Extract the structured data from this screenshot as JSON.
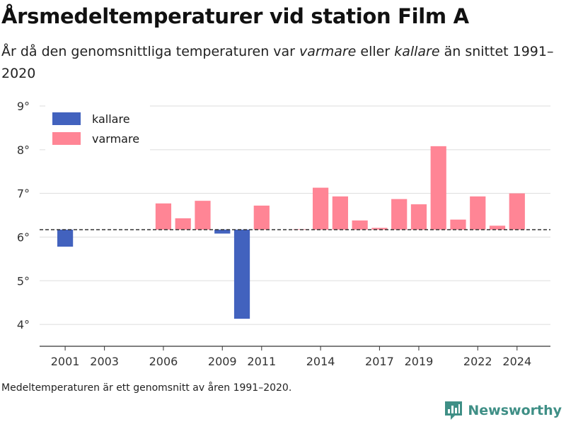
{
  "title": "Årsmedeltemperaturer vid station Film A",
  "subtitle": {
    "prefix": "År då den genomsnittliga temperaturen var ",
    "warmer_word": "varmare",
    "middle": " eller ",
    "colder_word": "kallare",
    "suffix": " än snittet 1991–2020"
  },
  "footnote": "Medeltemperaturen är ett genomsnitt av åren 1991–2020.",
  "brand": {
    "name": "Newsworthy",
    "icon": "newsworthy-logo-icon"
  },
  "colors": {
    "colder": "#4262be",
    "warmer": "#ff8595",
    "baseline": "#333333",
    "grid": "#dddddd"
  },
  "chart_data": {
    "type": "bar",
    "baseline": 6.17,
    "ylim": [
      3.5,
      9.0
    ],
    "yticks": [
      4,
      5,
      6,
      7,
      8,
      9
    ],
    "ytick_labels": [
      "4°",
      "5°",
      "6°",
      "7°",
      "8°",
      "9°"
    ],
    "xlim": [
      1999.7,
      2025.7
    ],
    "xticks": [
      2001,
      2003,
      2006,
      2009,
      2011,
      2014,
      2017,
      2019,
      2022,
      2024
    ],
    "xtick_labels": [
      "2001",
      "2003",
      "2006",
      "2009",
      "2011",
      "2014",
      "2017",
      "2019",
      "2022",
      "2024"
    ],
    "legend": {
      "position": "top-left",
      "items": [
        {
          "label": "kallare",
          "color": "#4262be"
        },
        {
          "label": "varmare",
          "color": "#ff8595"
        }
      ]
    },
    "grid": true,
    "years": [
      2001,
      2006,
      2007,
      2008,
      2009,
      2010,
      2011,
      2013,
      2014,
      2015,
      2016,
      2017,
      2018,
      2019,
      2020,
      2021,
      2022,
      2023,
      2024
    ],
    "values": [
      5.78,
      6.77,
      6.43,
      6.83,
      6.08,
      4.13,
      6.72,
      6.18,
      7.13,
      6.93,
      6.38,
      6.21,
      6.87,
      6.75,
      8.08,
      6.4,
      6.93,
      6.26,
      7.0
    ]
  }
}
